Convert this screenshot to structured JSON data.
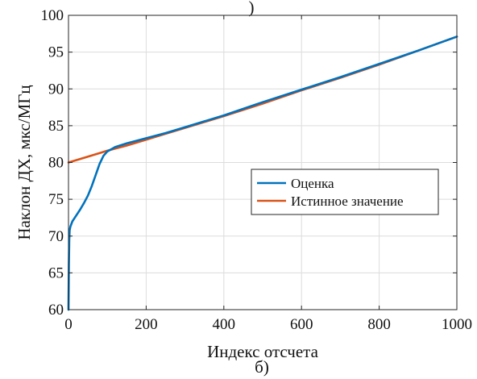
{
  "top_fragment": ")",
  "caption": "б)",
  "chart_data": {
    "type": "line",
    "xlabel": "Индекс отсчета",
    "ylabel": "Наклон ДХ, мкс/МГц",
    "xlim": [
      0,
      1000
    ],
    "ylim": [
      60,
      100
    ],
    "xticks": [
      0,
      200,
      400,
      600,
      800,
      1000
    ],
    "yticks": [
      60,
      65,
      70,
      75,
      80,
      85,
      90,
      95,
      100
    ],
    "grid": true,
    "legend_position": "center-right",
    "series": [
      {
        "name": "Оценка",
        "color": "#0072BD",
        "x": [
          0,
          1,
          2,
          3,
          5,
          10,
          20,
          30,
          40,
          50,
          60,
          70,
          80,
          90,
          100,
          110,
          120,
          150,
          200,
          250,
          300,
          400,
          500,
          600,
          700,
          800,
          900,
          1000
        ],
        "y": [
          60,
          66,
          69.5,
          70.8,
          71.3,
          72.0,
          72.8,
          73.6,
          74.5,
          75.5,
          76.8,
          78.3,
          79.8,
          80.9,
          81.5,
          81.8,
          82.1,
          82.6,
          83.3,
          84.0,
          84.8,
          86.4,
          88.2,
          89.9,
          91.6,
          93.4,
          95.2,
          97.1
        ]
      },
      {
        "name": "Истинное значение",
        "color": "#D95319",
        "x": [
          0,
          50,
          100,
          150,
          200,
          250,
          300,
          400,
          500,
          600,
          700,
          800,
          900,
          1000
        ],
        "y": [
          80.0,
          80.8,
          81.6,
          82.3,
          83.1,
          83.9,
          84.7,
          86.3,
          88.0,
          89.8,
          91.5,
          93.3,
          95.2,
          97.1
        ]
      }
    ]
  }
}
